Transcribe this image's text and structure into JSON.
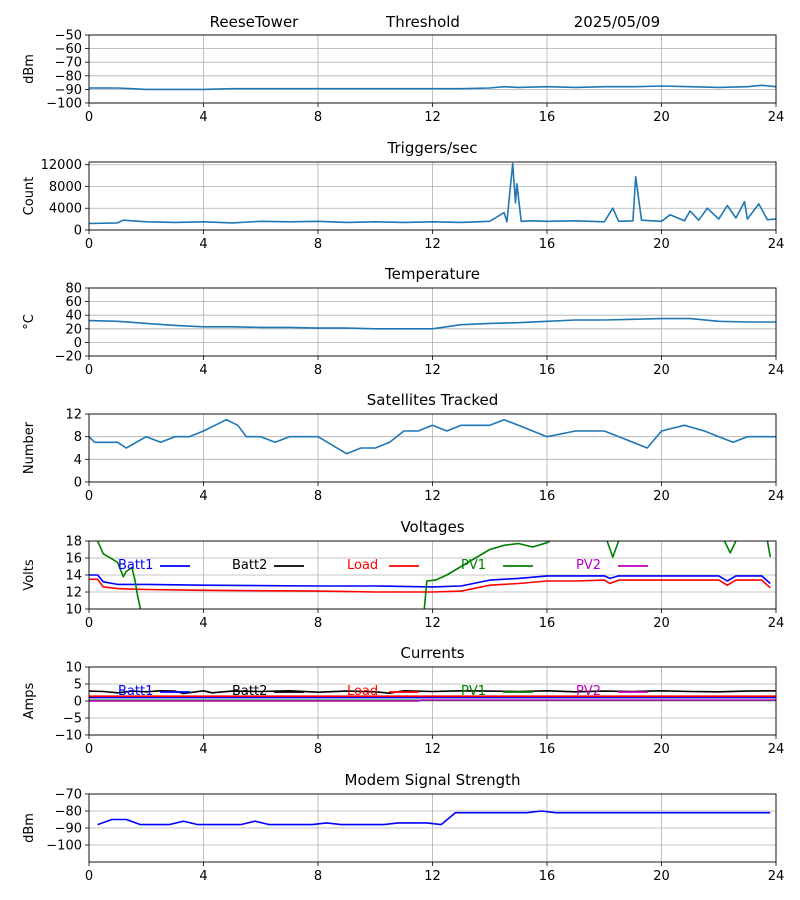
{
  "header": {
    "station": "ReeseTower",
    "mode": "Threshold",
    "date": "2025/05/09"
  },
  "chart_data": [
    {
      "id": "signal",
      "type": "line",
      "title": "",
      "ylabel": "dBm",
      "xlim": [
        0,
        24
      ],
      "ylim": [
        -100,
        -50
      ],
      "xticks": [
        0,
        4,
        8,
        12,
        16,
        20,
        24
      ],
      "yticks": [
        -100,
        -90,
        -80,
        -70,
        -60,
        -50
      ],
      "grid": true,
      "series": [
        {
          "color": "#1f77b4",
          "x": [
            0,
            1,
            2,
            3,
            4,
            5,
            6,
            7,
            8,
            9,
            10,
            11,
            12,
            13,
            14,
            14.5,
            15,
            16,
            17,
            18,
            19,
            20,
            21,
            22,
            23,
            23.5,
            24
          ],
          "y": [
            -89,
            -89,
            -90,
            -90,
            -90,
            -89.5,
            -89.5,
            -89.5,
            -89.5,
            -89.5,
            -89.5,
            -89.5,
            -89.5,
            -89.5,
            -89,
            -88,
            -88.5,
            -88,
            -88.5,
            -88,
            -88,
            -87.5,
            -88,
            -88.5,
            -88,
            -87,
            -88
          ]
        }
      ]
    },
    {
      "id": "triggers",
      "type": "line",
      "title": "Triggers/sec",
      "ylabel": "Count",
      "xlim": [
        0,
        24
      ],
      "ylim": [
        0,
        12500
      ],
      "xticks": [
        0,
        4,
        8,
        12,
        16,
        20,
        24
      ],
      "yticks": [
        0,
        4000,
        8000,
        12000
      ],
      "grid": true,
      "series": [
        {
          "color": "#1f77b4",
          "x": [
            0,
            1,
            1.2,
            2,
            3,
            4,
            5,
            6,
            7,
            8,
            9,
            10,
            11,
            12,
            13,
            14,
            14.5,
            14.6,
            14.8,
            14.9,
            14.95,
            15.1,
            15.5,
            16,
            17,
            18,
            18.3,
            18.5,
            19,
            19.1,
            19.3,
            20,
            20.3,
            20.8,
            21,
            21.3,
            21.6,
            22,
            22.3,
            22.6,
            22.9,
            23,
            23.4,
            23.7,
            24
          ],
          "y": [
            1200,
            1300,
            1800,
            1500,
            1400,
            1500,
            1300,
            1600,
            1500,
            1600,
            1400,
            1500,
            1400,
            1500,
            1400,
            1600,
            3200,
            1500,
            12200,
            5000,
            8500,
            1600,
            1700,
            1600,
            1700,
            1500,
            4000,
            1600,
            1700,
            9800,
            1800,
            1600,
            2800,
            1700,
            3500,
            1800,
            4000,
            2000,
            4500,
            2200,
            5200,
            2000,
            4800,
            1900,
            2000
          ]
        }
      ]
    },
    {
      "id": "temperature",
      "type": "line",
      "title": "Temperature",
      "ylabel": "°C",
      "xlim": [
        0,
        24
      ],
      "ylim": [
        -20,
        80
      ],
      "xticks": [
        0,
        4,
        8,
        12,
        16,
        20,
        24
      ],
      "yticks": [
        -20,
        0,
        20,
        40,
        60,
        80
      ],
      "grid": true,
      "series": [
        {
          "color": "#1f77b4",
          "x": [
            0,
            1,
            2,
            3,
            4,
            5,
            6,
            7,
            8,
            9,
            10,
            11,
            12,
            13,
            14,
            15,
            16,
            17,
            18,
            19,
            20,
            21,
            22,
            23,
            24
          ],
          "y": [
            32,
            31,
            28,
            25,
            23,
            23,
            22,
            22,
            21,
            21,
            20,
            20,
            20,
            26,
            28,
            29,
            31,
            33,
            33,
            34,
            35,
            35,
            31,
            30,
            30
          ]
        }
      ]
    },
    {
      "id": "satellites",
      "type": "line",
      "title": "Satellites Tracked",
      "ylabel": "Number",
      "xlim": [
        0,
        24
      ],
      "ylim": [
        0,
        12
      ],
      "xticks": [
        0,
        4,
        8,
        12,
        16,
        20,
        24
      ],
      "yticks": [
        0,
        4,
        8,
        12
      ],
      "grid": true,
      "series": [
        {
          "color": "#1f77b4",
          "x": [
            0,
            0.2,
            1,
            1.3,
            2,
            2.5,
            3,
            3.5,
            4,
            4.8,
            5.2,
            5.5,
            6,
            6.5,
            7,
            7.5,
            8,
            9,
            9.5,
            10,
            10.5,
            11,
            11.5,
            12,
            12.5,
            13,
            13.5,
            14,
            14.5,
            15,
            15.5,
            16,
            17,
            18,
            19,
            19.5,
            20,
            20.8,
            21.5,
            22,
            22.5,
            23,
            23.5,
            24
          ],
          "y": [
            8,
            7,
            7,
            6,
            8,
            7,
            8,
            8,
            9,
            11,
            10,
            8,
            8,
            7,
            8,
            8,
            8,
            5,
            6,
            6,
            7,
            9,
            9,
            10,
            9,
            10,
            10,
            10,
            11,
            10,
            9,
            8,
            9,
            9,
            7,
            6,
            9,
            10,
            9,
            8,
            7,
            8,
            8,
            8
          ]
        }
      ]
    },
    {
      "id": "voltages",
      "type": "line",
      "title": "Voltages",
      "ylabel": "Volts",
      "xlim": [
        0,
        24
      ],
      "ylim": [
        10,
        18
      ],
      "xticks": [
        0,
        4,
        8,
        12,
        16,
        20,
        24
      ],
      "yticks": [
        10,
        12,
        14,
        16,
        18
      ],
      "grid": true,
      "legend": "top",
      "series": [
        {
          "name": "Batt1",
          "color": "#0000ff",
          "x": [
            0,
            0.3,
            0.5,
            1,
            2,
            4,
            8,
            10,
            12,
            13,
            14,
            15,
            16,
            17,
            18,
            18.2,
            18.5,
            20,
            22,
            22.3,
            22.6,
            23.5,
            23.8
          ],
          "y": [
            14.0,
            14.0,
            13.2,
            12.9,
            12.9,
            12.8,
            12.7,
            12.7,
            12.6,
            12.7,
            13.4,
            13.6,
            13.9,
            13.9,
            13.9,
            13.6,
            13.9,
            13.9,
            13.9,
            13.3,
            13.9,
            13.9,
            13.0
          ]
        },
        {
          "name": "Batt2",
          "color": "#000000",
          "x": [],
          "y": []
        },
        {
          "name": "Load",
          "color": "#ff0000",
          "x": [
            0,
            0.3,
            0.5,
            1,
            2,
            4,
            8,
            10,
            12,
            13,
            14,
            15,
            16,
            17,
            18,
            18.2,
            18.5,
            20,
            22,
            22.3,
            22.6,
            23.5,
            23.8
          ],
          "y": [
            13.5,
            13.5,
            12.6,
            12.4,
            12.3,
            12.2,
            12.1,
            12.0,
            12.0,
            12.1,
            12.8,
            13.0,
            13.3,
            13.3,
            13.4,
            13.0,
            13.4,
            13.4,
            13.4,
            12.8,
            13.4,
            13.4,
            12.5
          ]
        },
        {
          "name": "PV1",
          "color": "#008000",
          "x": [
            0.3,
            0.5,
            1,
            1.2,
            1.3,
            1.5,
            1.6,
            1.7,
            1.8,
            1.85,
            null,
            11.7,
            11.8,
            12.1,
            12.5,
            13,
            13.5,
            14,
            14.5,
            15,
            15.5,
            16,
            16.1,
            null,
            18.1,
            18.3,
            18.5,
            null,
            22.2,
            22.4,
            22.6,
            null,
            23.7,
            23.8
          ],
          "y": [
            18.0,
            16.5,
            15.5,
            13.8,
            14.4,
            14.9,
            13.5,
            11.5,
            10.0,
            9.5,
            null,
            9.5,
            13.3,
            13.4,
            14.0,
            15.0,
            16.0,
            17.0,
            17.5,
            17.7,
            17.3,
            17.8,
            18.0,
            null,
            18.0,
            16.1,
            18.0,
            null,
            18.0,
            16.6,
            18.0,
            null,
            18.0,
            16.1
          ]
        },
        {
          "name": "PV2",
          "color": "#bf00bf",
          "x": [],
          "y": []
        }
      ]
    },
    {
      "id": "currents",
      "type": "line",
      "title": "Currents",
      "ylabel": "Amps",
      "xlim": [
        0,
        24
      ],
      "ylim": [
        -10,
        10
      ],
      "xticks": [
        0,
        4,
        8,
        12,
        16,
        20,
        24
      ],
      "yticks": [
        -10,
        -5,
        0,
        5,
        10
      ],
      "grid": true,
      "legend": "top",
      "series": [
        {
          "name": "Batt1",
          "color": "#0000ff",
          "x": [
            0,
            24
          ],
          "y": [
            1.0,
            1.0
          ]
        },
        {
          "name": "Batt2",
          "color": "#000000",
          "x": [
            0,
            0.5,
            1,
            1.5,
            2,
            2.5,
            3,
            3.3,
            4,
            4.3,
            5,
            6,
            7,
            8,
            9,
            10,
            10.5,
            11,
            12,
            13,
            14,
            15,
            16,
            17,
            18,
            19,
            20,
            21,
            22,
            23,
            24
          ],
          "y": [
            2.9,
            2.8,
            2.4,
            2.9,
            2.7,
            3.0,
            2.9,
            2.2,
            3.0,
            2.4,
            2.9,
            2.8,
            3.0,
            2.6,
            2.9,
            2.7,
            2.3,
            3.0,
            2.8,
            3.0,
            2.9,
            2.8,
            3.0,
            2.7,
            2.9,
            2.8,
            3.0,
            2.8,
            2.7,
            2.9,
            3.0
          ]
        },
        {
          "name": "Load",
          "color": "#ff0000",
          "x": [
            0,
            24
          ],
          "y": [
            1.4,
            1.4
          ]
        },
        {
          "name": "PV1",
          "color": "#008000",
          "x": [
            0,
            24
          ],
          "y": [
            0.2,
            0.2
          ]
        },
        {
          "name": "PV2",
          "color": "#bf00bf",
          "x": [
            0,
            11.5,
            11.6,
            24
          ],
          "y": [
            0.0,
            0.0,
            0.3,
            0.3
          ]
        }
      ]
    },
    {
      "id": "modem",
      "type": "line",
      "title": "Modem Signal Strength",
      "ylabel": "dBm",
      "xlim": [
        0,
        24
      ],
      "ylim": [
        -110,
        -70
      ],
      "xticks": [
        0,
        4,
        8,
        12,
        16,
        20,
        24
      ],
      "yticks": [
        -100,
        -90,
        -80,
        -70
      ],
      "grid": true,
      "series": [
        {
          "color": "#0000ff",
          "x": [
            0.3,
            0.8,
            1.3,
            1.8,
            2.3,
            2.8,
            3.3,
            3.8,
            4.3,
            4.8,
            5.3,
            5.8,
            6.3,
            6.8,
            7.3,
            7.8,
            8.3,
            8.8,
            9.3,
            9.8,
            10.3,
            10.8,
            11.3,
            11.8,
            12.3,
            12.8,
            13.3,
            13.8,
            14.3,
            14.8,
            15.3,
            15.8,
            16.3,
            16.8,
            17.3,
            18.3,
            19.3,
            20.3,
            21.3,
            22.3,
            23.3,
            23.8
          ],
          "y": [
            -88,
            -85,
            -85,
            -88,
            -88,
            -88,
            -86,
            -88,
            -88,
            -88,
            -88,
            -86,
            -88,
            -88,
            -88,
            -88,
            -87,
            -88,
            -88,
            -88,
            -88,
            -87,
            -87,
            -87,
            -88,
            -81,
            -81,
            -81,
            -81,
            -81,
            -81,
            -80,
            -81,
            -81,
            -81,
            -81,
            -81,
            -81,
            -81,
            -81,
            -81,
            -81
          ]
        }
      ]
    }
  ]
}
